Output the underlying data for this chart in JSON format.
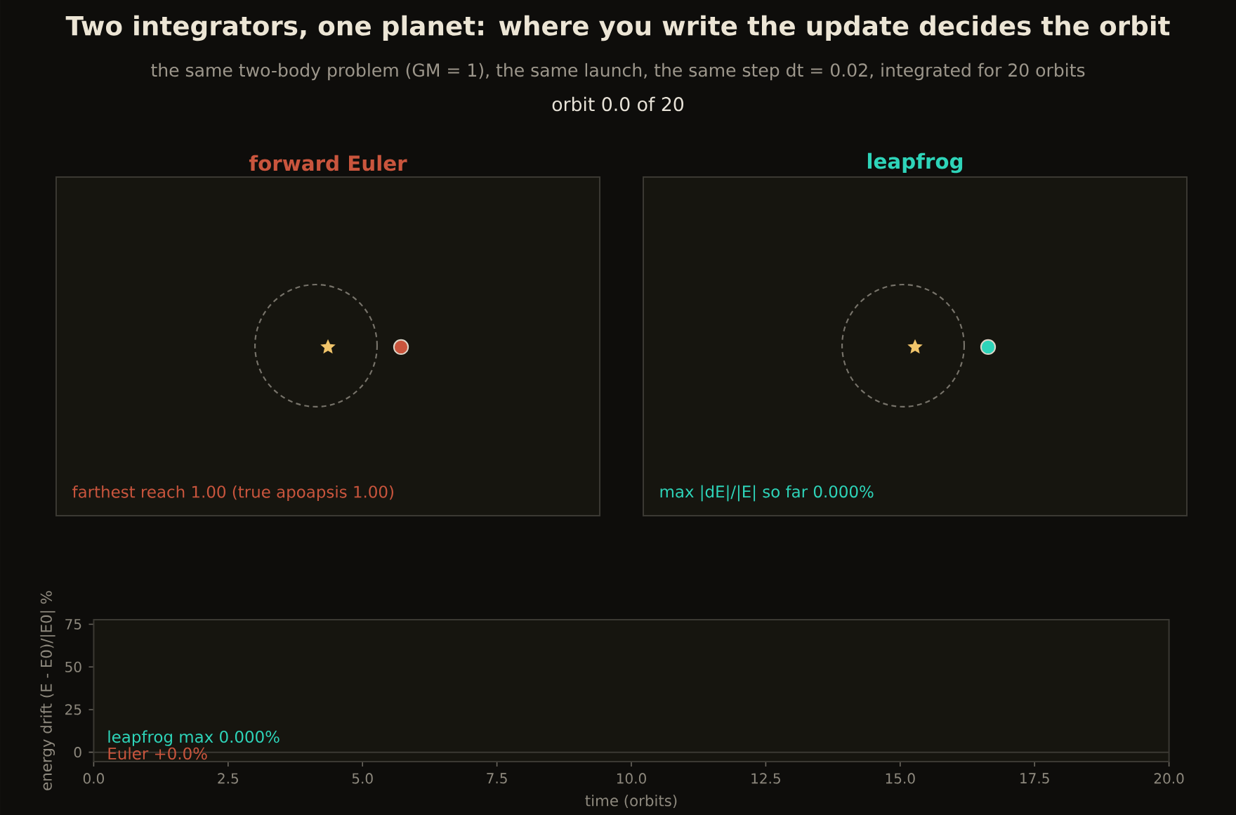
{
  "chart_data": [
    {
      "type": "other",
      "title": "Two integrators, one planet: where you write the update decides the orbit",
      "subtitle": "the same two-body problem (GM = 1), the same launch, the same step dt = 0.02, integrated for 20 orbits",
      "annotations": [
        "orbit 0.0 of 20"
      ]
    },
    {
      "type": "other",
      "title": "forward Euler",
      "color": "#c9553d",
      "annotations": [
        "farthest reach 1.00 (true apoapsis 1.00)"
      ]
    },
    {
      "type": "other",
      "title": "leapfrog",
      "color": "#2ed4b9",
      "annotations": [
        "max |dE|/|E| so far 0.000%"
      ]
    },
    {
      "type": "line",
      "xlabel": "time (orbits)",
      "ylabel": "energy drift (E - E0)/|E0| %",
      "xlim": [
        0,
        20
      ],
      "xticks": [
        {
          "value": 0,
          "label": "0.0"
        },
        {
          "value": 2.5,
          "label": "2.5"
        },
        {
          "value": 5,
          "label": "5.0"
        },
        {
          "value": 7.5,
          "label": "7.5"
        },
        {
          "value": 10,
          "label": "10.0"
        },
        {
          "value": 12.5,
          "label": "12.5"
        },
        {
          "value": 15,
          "label": "15.0"
        },
        {
          "value": 17.5,
          "label": "17.5"
        },
        {
          "value": 20,
          "label": "20.0"
        }
      ],
      "ylim": [
        -5.5,
        77.7
      ],
      "yticks": [
        0,
        25,
        50,
        75
      ],
      "ref_lines": [
        {
          "axis": "y",
          "value": 0,
          "color": "#3b3933"
        }
      ],
      "annotations": [
        "leapfrog max 0.000%",
        "Euler +0.0%"
      ]
    }
  ]
}
